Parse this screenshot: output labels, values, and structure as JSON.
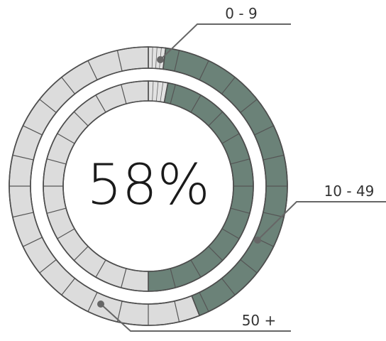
{
  "chart_data": {
    "type": "donut",
    "center_label": "58%",
    "rings": [
      {
        "ring": "outer",
        "segments": [
          {
            "label": "0 - 9",
            "value": 2,
            "color": "#e2e2e2"
          },
          {
            "label": "10 - 49",
            "value": 42,
            "color": "#6b8278"
          },
          {
            "label": "50 +",
            "value": 56,
            "color": "#dcdcdc"
          }
        ]
      },
      {
        "ring": "inner",
        "segments": [
          {
            "label": "0 - 9",
            "value": 3,
            "color": "#e2e2e2"
          },
          {
            "label": "10 - 49",
            "value": 47,
            "color": "#6b8278"
          },
          {
            "label": "50 +",
            "value": 50,
            "color": "#dcdcdc"
          }
        ]
      }
    ],
    "callouts": [
      {
        "label": "0 - 9",
        "ring": "outer",
        "segment": 0
      },
      {
        "label": "10 - 49",
        "ring": "outer",
        "segment": 1
      },
      {
        "label": "50 +",
        "ring": "outer",
        "segment": 2
      }
    ]
  }
}
